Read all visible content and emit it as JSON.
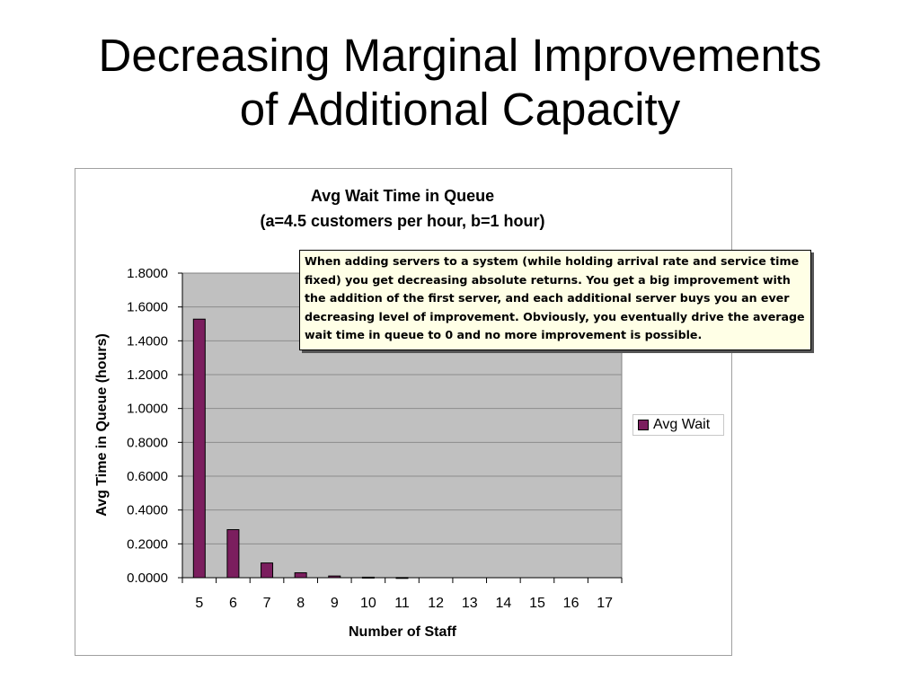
{
  "slide": {
    "title_line1": "Decreasing Marginal Improvements",
    "title_line2": "of Additional Capacity"
  },
  "annotation": {
    "text": "When adding servers to a system (while holding arrival rate and service time fixed) you get decreasing absolute returns. You get a big improvement with the addition of the first server, and each additional server buys you an ever decreasing level of improvement. Obviously, you eventually drive the average wait time in queue to 0 and no more improvement is possible."
  },
  "chart_data": {
    "type": "bar",
    "title": "Avg Wait Time in Queue",
    "subtitle": "(a=4.5 customers per hour, b=1 hour)",
    "xlabel": "Number of Staff",
    "ylabel": "Avg Time in Queue (hours)",
    "categories": [
      "5",
      "6",
      "7",
      "8",
      "9",
      "10",
      "11",
      "12",
      "13",
      "14",
      "15",
      "16",
      "17"
    ],
    "series": [
      {
        "name": "Avg Wait",
        "values": [
          1.528,
          0.284,
          0.087,
          0.029,
          0.01,
          0.003,
          0.001,
          0.0,
          0.0,
          0.0,
          0.0,
          0.0,
          0.0
        ]
      }
    ],
    "ylim": [
      0,
      1.8
    ],
    "yticks": [
      "0.0000",
      "0.2000",
      "0.4000",
      "0.6000",
      "0.8000",
      "1.0000",
      "1.2000",
      "1.4000",
      "1.6000",
      "1.8000"
    ],
    "ytick_values": [
      0,
      0.2,
      0.4,
      0.6,
      0.8,
      1.0,
      1.2,
      1.4,
      1.6,
      1.8
    ],
    "grid": true,
    "legend_position": "right",
    "colors": {
      "bar": "#7b1e5e",
      "plot_background": "#c0c0c0",
      "gridline": "#8c8c8c"
    }
  }
}
